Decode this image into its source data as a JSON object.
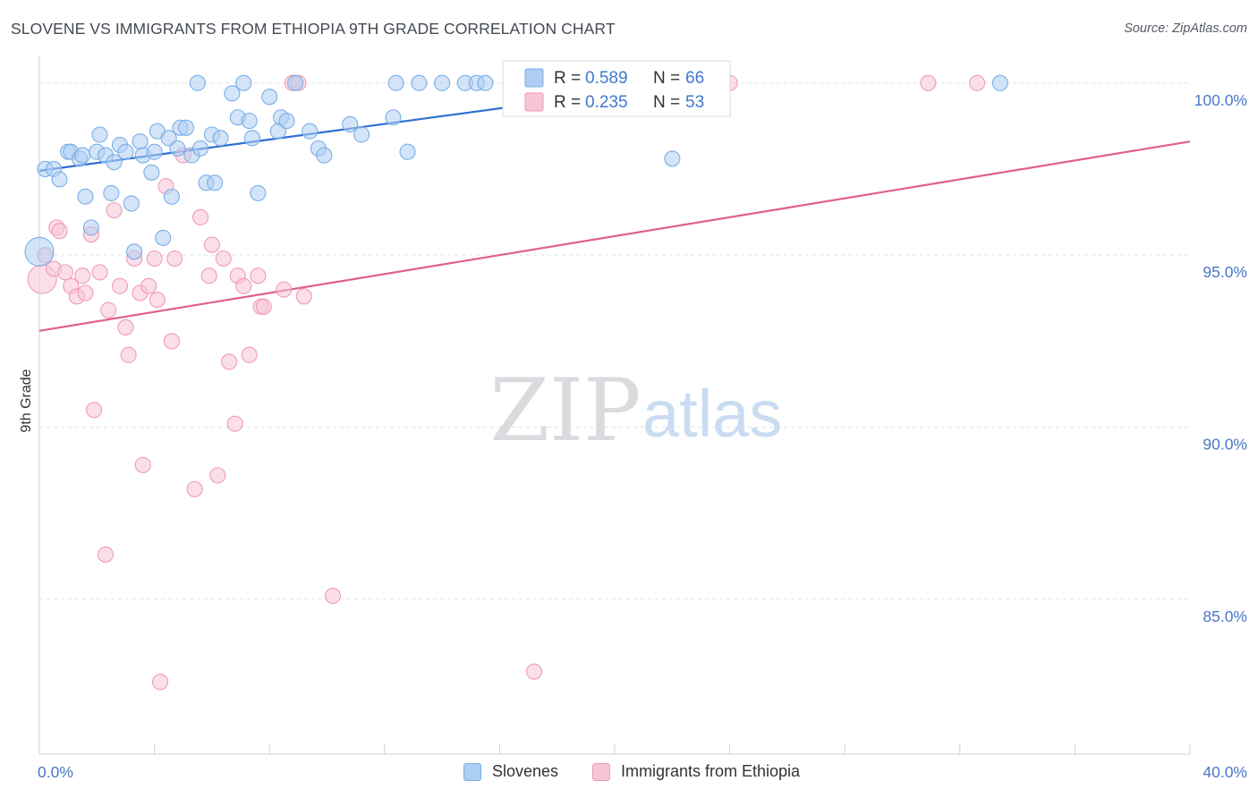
{
  "header": {
    "title": "SLOVENE VS IMMIGRANTS FROM ETHIOPIA 9TH GRADE CORRELATION CHART",
    "source": "Source: ZipAtlas.com"
  },
  "watermark": {
    "zip": "ZIP",
    "atlas": "atlas"
  },
  "chart_data": {
    "type": "scatter",
    "title": "SLOVENE VS IMMIGRANTS FROM ETHIOPIA 9TH GRADE CORRELATION CHART",
    "xlabel": "",
    "ylabel": "9th Grade",
    "xlim": [
      0,
      40
    ],
    "ylim": [
      80.5,
      100.8
    ],
    "x_tick_labels": [
      "0.0%",
      "40.0%"
    ],
    "y_ticks": [
      85,
      90,
      95,
      100
    ],
    "y_tick_labels": [
      "85.0%",
      "90.0%",
      "95.0%",
      "100.0%"
    ],
    "grid": true,
    "legend_position": "top-center",
    "series": [
      {
        "name": "Slovenes",
        "color": "#7aaee8",
        "fill": "#aecdf3",
        "line_color": "#2f6fd0",
        "R": "0.589",
        "N": "66",
        "trend": [
          [
            0,
            97.45
          ],
          [
            22.5,
            100.0
          ]
        ],
        "points": [
          [
            0.0,
            95.1
          ],
          [
            0.2,
            97.5
          ],
          [
            0.5,
            97.5
          ],
          [
            0.7,
            97.2
          ],
          [
            1.0,
            98.0
          ],
          [
            1.1,
            98.0
          ],
          [
            1.4,
            97.8
          ],
          [
            1.5,
            97.9
          ],
          [
            1.6,
            96.7
          ],
          [
            1.8,
            95.8
          ],
          [
            2.0,
            98.0
          ],
          [
            2.1,
            98.5
          ],
          [
            2.3,
            97.9
          ],
          [
            2.5,
            96.8
          ],
          [
            2.6,
            97.7
          ],
          [
            2.8,
            98.2
          ],
          [
            3.0,
            98.0
          ],
          [
            3.2,
            96.5
          ],
          [
            3.3,
            95.1
          ],
          [
            3.5,
            98.3
          ],
          [
            3.6,
            97.9
          ],
          [
            3.9,
            97.4
          ],
          [
            4.0,
            98.0
          ],
          [
            4.1,
            98.6
          ],
          [
            4.3,
            95.5
          ],
          [
            4.5,
            98.4
          ],
          [
            4.6,
            96.7
          ],
          [
            4.8,
            98.1
          ],
          [
            4.9,
            98.7
          ],
          [
            5.1,
            98.7
          ],
          [
            5.3,
            97.9
          ],
          [
            5.5,
            100.0
          ],
          [
            5.6,
            98.1
          ],
          [
            5.8,
            97.1
          ],
          [
            6.0,
            98.5
          ],
          [
            6.1,
            97.1
          ],
          [
            6.3,
            98.4
          ],
          [
            6.7,
            99.7
          ],
          [
            6.9,
            99.0
          ],
          [
            7.1,
            100.0
          ],
          [
            7.3,
            98.9
          ],
          [
            7.4,
            98.4
          ],
          [
            7.6,
            96.8
          ],
          [
            8.0,
            99.6
          ],
          [
            8.3,
            98.6
          ],
          [
            8.4,
            99.0
          ],
          [
            8.6,
            98.9
          ],
          [
            8.9,
            100.0
          ],
          [
            9.4,
            98.6
          ],
          [
            9.7,
            98.1
          ],
          [
            9.9,
            97.9
          ],
          [
            10.8,
            98.8
          ],
          [
            11.2,
            98.5
          ],
          [
            12.3,
            99.0
          ],
          [
            12.4,
            100.0
          ],
          [
            12.8,
            98.0
          ],
          [
            13.2,
            100.0
          ],
          [
            14.0,
            100.0
          ],
          [
            14.8,
            100.0
          ],
          [
            15.2,
            100.0
          ],
          [
            15.5,
            100.0
          ],
          [
            17.9,
            100.0
          ],
          [
            21.9,
            99.8
          ],
          [
            22.0,
            97.8
          ],
          [
            22.2,
            99.5
          ],
          [
            33.4,
            100.0
          ]
        ]
      },
      {
        "name": "Immigrants from Ethiopia",
        "color": "#f09ab6",
        "fill": "#f7c5d5",
        "line_color": "#e0608a",
        "R": "0.235",
        "N": "53",
        "trend": [
          [
            0,
            92.8
          ],
          [
            40,
            98.3
          ]
        ],
        "points": [
          [
            0.1,
            94.3
          ],
          [
            0.2,
            95.0
          ],
          [
            0.5,
            94.6
          ],
          [
            0.6,
            95.8
          ],
          [
            0.7,
            95.7
          ],
          [
            0.9,
            94.5
          ],
          [
            1.1,
            94.1
          ],
          [
            1.3,
            93.8
          ],
          [
            1.5,
            94.4
          ],
          [
            1.6,
            93.9
          ],
          [
            1.8,
            95.6
          ],
          [
            1.9,
            90.5
          ],
          [
            2.1,
            94.5
          ],
          [
            2.3,
            86.3
          ],
          [
            2.4,
            93.4
          ],
          [
            2.6,
            96.3
          ],
          [
            2.8,
            94.1
          ],
          [
            3.0,
            92.9
          ],
          [
            3.1,
            92.1
          ],
          [
            3.3,
            94.9
          ],
          [
            3.5,
            93.9
          ],
          [
            3.6,
            88.9
          ],
          [
            3.8,
            94.1
          ],
          [
            4.0,
            94.9
          ],
          [
            4.1,
            93.7
          ],
          [
            4.2,
            82.6
          ],
          [
            4.4,
            97.0
          ],
          [
            4.6,
            92.5
          ],
          [
            4.7,
            94.9
          ],
          [
            5.0,
            97.9
          ],
          [
            5.4,
            88.2
          ],
          [
            5.6,
            96.1
          ],
          [
            5.9,
            94.4
          ],
          [
            6.0,
            95.3
          ],
          [
            6.2,
            88.6
          ],
          [
            6.4,
            94.9
          ],
          [
            6.6,
            91.9
          ],
          [
            6.8,
            90.1
          ],
          [
            6.9,
            94.4
          ],
          [
            7.1,
            94.1
          ],
          [
            7.3,
            92.1
          ],
          [
            7.6,
            94.4
          ],
          [
            7.7,
            93.5
          ],
          [
            7.8,
            93.5
          ],
          [
            8.5,
            94.0
          ],
          [
            8.8,
            100.0
          ],
          [
            9.0,
            100.0
          ],
          [
            9.2,
            93.8
          ],
          [
            10.2,
            85.1
          ],
          [
            17.2,
            82.9
          ],
          [
            24.0,
            100.0
          ],
          [
            30.9,
            100.0
          ],
          [
            32.6,
            100.0
          ]
        ]
      }
    ]
  },
  "legend": {
    "r_label": "R =",
    "n_label": "N =",
    "items": [
      {
        "r": "0.589",
        "n": "66"
      },
      {
        "r": "0.235",
        "n": "53"
      }
    ]
  },
  "bottom_legend": {
    "items": [
      {
        "label": "Slovenes"
      },
      {
        "label": "Immigrants from Ethiopia"
      }
    ]
  }
}
